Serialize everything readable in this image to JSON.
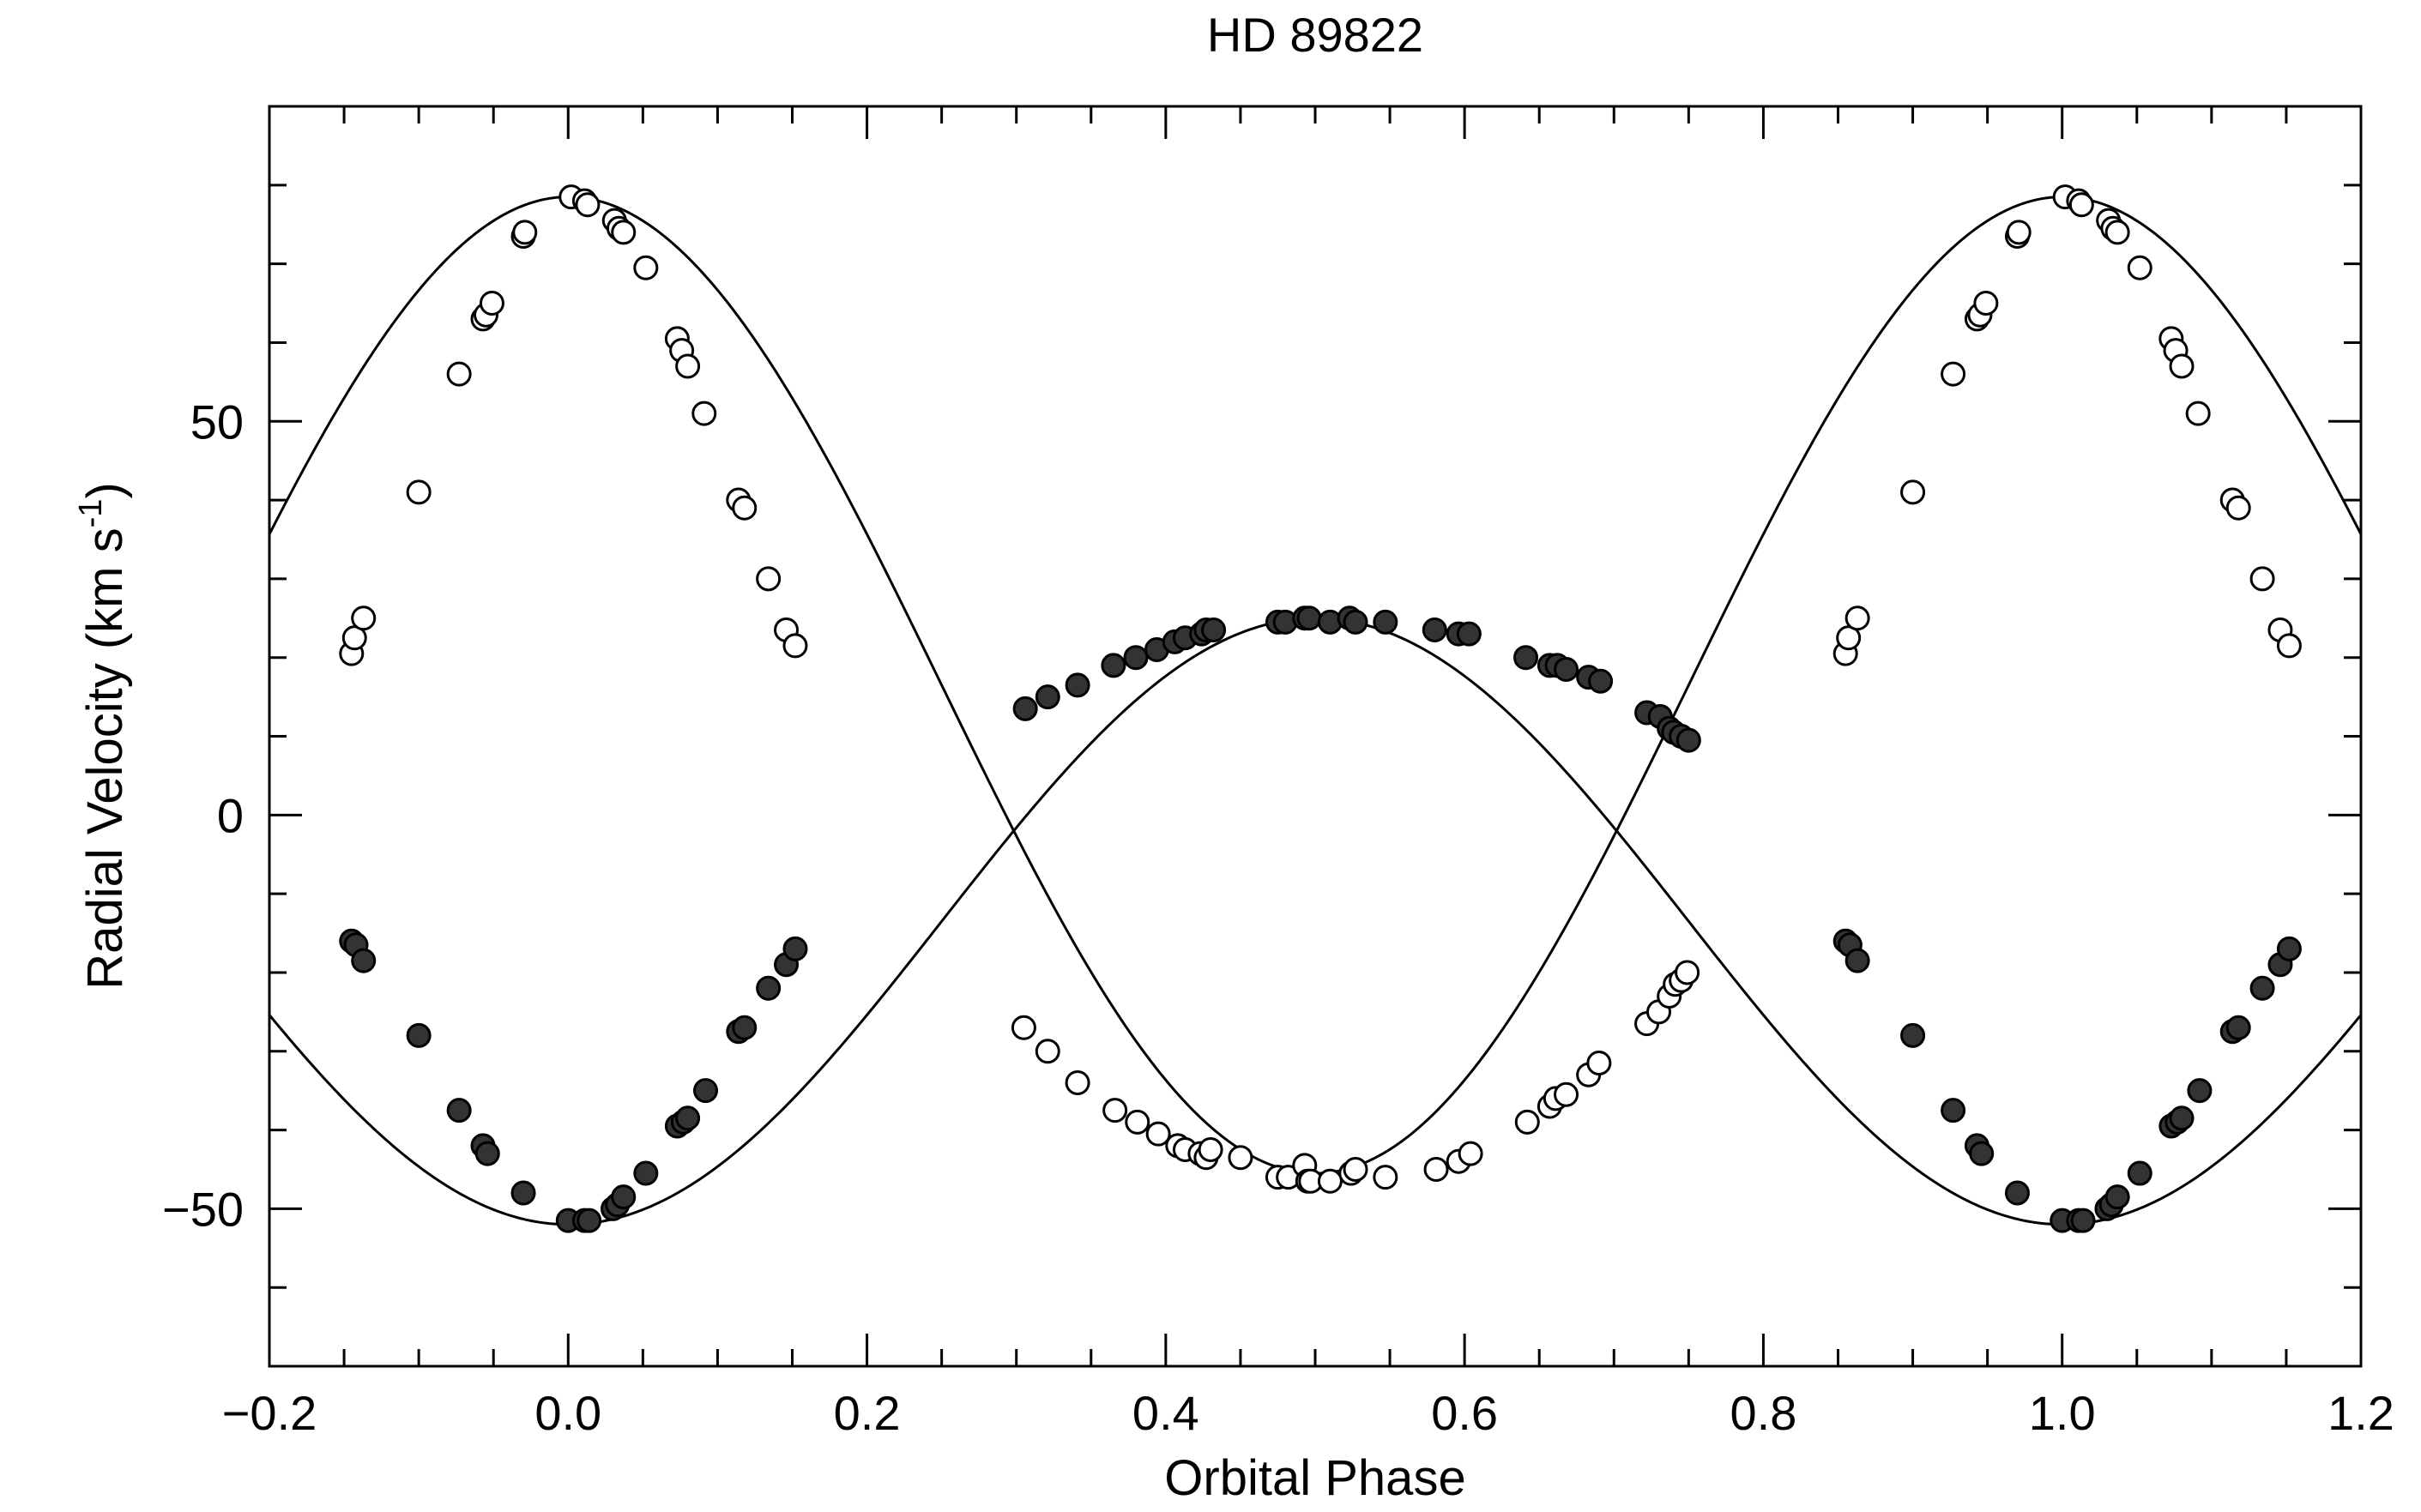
{
  "chart_data": {
    "type": "scatter",
    "title": "HD 89822",
    "xlabel": "Orbital Phase",
    "ylabel": "Radial Velocity (km s",
    "ylabel_sup": "-1",
    "ylabel_close": ")",
    "xlim": [
      -0.2,
      1.2
    ],
    "ylim": [
      -70,
      90
    ],
    "xticks": [
      -0.2,
      0.0,
      0.2,
      0.4,
      0.6,
      0.8,
      1.0,
      1.2
    ],
    "xtick_labels": [
      "−0.2",
      "0.0",
      "0.2",
      "0.4",
      "0.6",
      "0.8",
      "1.0",
      "1.2"
    ],
    "x_minor_step": 0.05,
    "yticks": [
      -50,
      0,
      50
    ],
    "ytick_labels": [
      "−50",
      "0",
      "50"
    ],
    "y_minor_step": 10,
    "grid": false,
    "series": [
      {
        "marker": "open-circle",
        "orbit": {
          "gamma": 16.5,
          "K": 62.0,
          "phase_of_max": 0.0
        },
        "x": [
          -0.145,
          -0.143,
          -0.137,
          -0.1,
          -0.073,
          -0.057,
          -0.055,
          -0.051,
          -0.03,
          -0.029,
          0.002,
          0.011,
          0.013,
          0.031,
          0.034,
          0.037,
          0.052,
          0.073,
          0.076,
          0.08,
          0.091,
          0.114,
          0.118,
          0.134,
          0.146,
          0.152,
          0.305,
          0.321,
          0.341,
          0.366,
          0.381,
          0.395,
          0.408,
          0.413,
          0.423,
          0.427,
          0.43,
          0.45,
          0.475,
          0.482,
          0.493,
          0.495,
          0.497,
          0.51,
          0.524,
          0.527,
          0.547,
          0.581,
          0.596,
          0.604,
          0.642,
          0.657,
          0.661,
          0.668,
          0.683,
          0.69,
          0.722,
          0.73,
          0.737,
          0.741,
          0.745,
          0.749,
          0.855,
          0.857,
          0.863,
          0.9,
          0.927,
          0.943,
          0.945,
          0.949,
          0.97,
          0.971,
          1.002,
          1.011,
          1.013,
          1.031,
          1.034,
          1.037,
          1.052,
          1.073,
          1.076,
          1.08,
          1.091,
          1.114,
          1.118,
          1.134,
          1.146,
          1.152
        ],
        "y": [
          20.5,
          22.5,
          25.0,
          41.0,
          56.0,
          63.0,
          63.5,
          65.0,
          73.5,
          74.0,
          78.5,
          78.0,
          77.5,
          75.5,
          74.5,
          74.0,
          69.5,
          60.5,
          59.0,
          57.0,
          51.0,
          40.0,
          39.0,
          30.0,
          23.5,
          21.5,
          -27.0,
          -30.0,
          -34.0,
          -37.5,
          -39.0,
          -40.5,
          -42.0,
          -42.5,
          -43.0,
          -43.5,
          -42.5,
          -43.5,
          -46.0,
          -46.0,
          -44.5,
          -46.5,
          -46.5,
          -46.5,
          -45.5,
          -45.0,
          -46.0,
          -45.0,
          -44.0,
          -43.0,
          -39.0,
          -37.0,
          -36.0,
          -35.5,
          -33.0,
          -31.5,
          -26.5,
          -25.0,
          -23.0,
          -21.5,
          -21.0,
          -20.0,
          20.5,
          22.5,
          25.0,
          41.0,
          56.0,
          63.0,
          63.5,
          65.0,
          73.5,
          74.0,
          78.5,
          78.0,
          77.5,
          75.5,
          74.5,
          74.0,
          69.5,
          60.5,
          59.0,
          57.0,
          51.0,
          40.0,
          39.0,
          30.0,
          23.5,
          21.5
        ]
      },
      {
        "marker": "filled-circle",
        "orbit": {
          "gamma": -13.5,
          "K": 38.5,
          "phase_of_max": 0.5
        },
        "x": [
          -0.145,
          -0.142,
          -0.137,
          -0.1,
          -0.073,
          -0.057,
          -0.054,
          -0.03,
          0.0,
          0.011,
          0.014,
          0.03,
          0.033,
          0.037,
          0.052,
          0.073,
          0.077,
          0.08,
          0.092,
          0.114,
          0.118,
          0.134,
          0.146,
          0.152,
          0.306,
          0.321,
          0.341,
          0.365,
          0.38,
          0.394,
          0.406,
          0.413,
          0.424,
          0.427,
          0.432,
          0.475,
          0.48,
          0.493,
          0.496,
          0.51,
          0.523,
          0.527,
          0.547,
          0.58,
          0.596,
          0.603,
          0.641,
          0.657,
          0.662,
          0.668,
          0.683,
          0.691,
          0.722,
          0.731,
          0.737,
          0.74,
          0.745,
          0.75,
          0.855,
          0.858,
          0.863,
          0.9,
          0.927,
          0.943,
          0.946,
          0.97,
          1.0,
          1.011,
          1.014,
          1.03,
          1.033,
          1.037,
          1.052,
          1.073,
          1.077,
          1.08,
          1.092,
          1.114,
          1.118,
          1.134,
          1.146,
          1.152
        ],
        "y": [
          -16.0,
          -16.5,
          -18.5,
          -28.0,
          -37.5,
          -42.0,
          -43.0,
          -48.0,
          -51.5,
          -51.5,
          -51.5,
          -50.0,
          -49.5,
          -48.5,
          -45.5,
          -39.5,
          -39.0,
          -38.5,
          -35.0,
          -27.5,
          -27.0,
          -22.0,
          -19.0,
          -17.0,
          13.5,
          15.0,
          16.5,
          19.0,
          20.0,
          21.0,
          22.0,
          22.5,
          23.0,
          23.5,
          23.5,
          24.5,
          24.5,
          25.0,
          25.0,
          24.5,
          25.0,
          24.5,
          24.5,
          23.5,
          23.0,
          23.0,
          20.0,
          19.0,
          19.0,
          18.5,
          17.5,
          17.0,
          13.0,
          12.5,
          11.0,
          10.5,
          10.0,
          9.5,
          -16.0,
          -16.5,
          -18.5,
          -28.0,
          -37.5,
          -42.0,
          -43.0,
          -48.0,
          -51.5,
          -51.5,
          -51.5,
          -50.0,
          -49.5,
          -48.5,
          -45.5,
          -39.5,
          -39.0,
          -38.5,
          -35.0,
          -27.5,
          -27.0,
          -22.0,
          -19.0,
          -17.0
        ]
      }
    ]
  }
}
